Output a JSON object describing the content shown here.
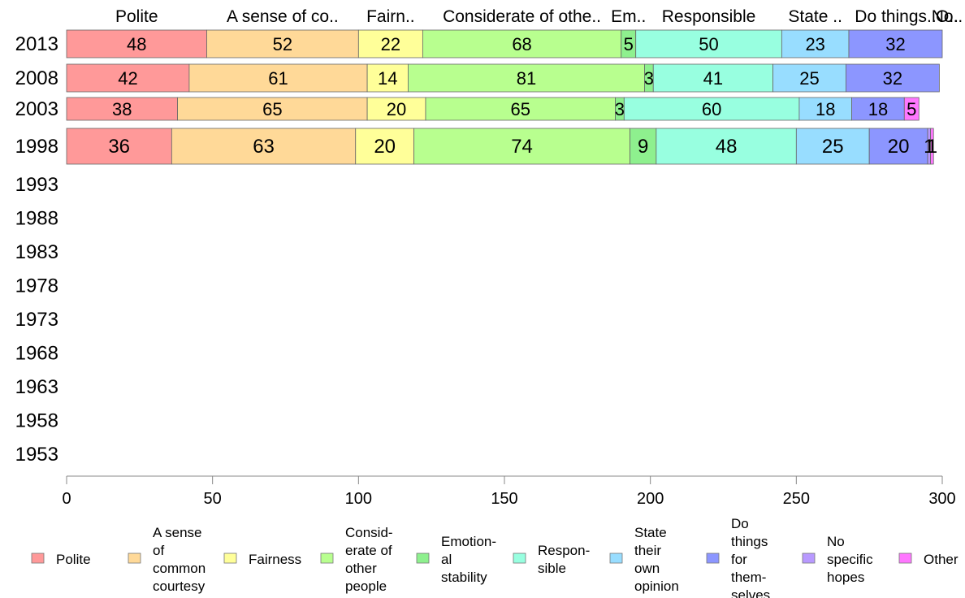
{
  "chart_data": {
    "type": "bar",
    "orientation": "horizontal",
    "stacked": true,
    "categories": [
      "2013",
      "2008",
      "2003",
      "1998",
      "1993",
      "1988",
      "1983",
      "1978",
      "1973",
      "1968",
      "1963",
      "1958",
      "1953"
    ],
    "series": [
      {
        "name": "Polite",
        "header": "Polite",
        "legend": [
          "Polite"
        ],
        "color": "#ff9999",
        "values": [
          48,
          42,
          38,
          36,
          null,
          null,
          null,
          null,
          null,
          null,
          null,
          null,
          null
        ]
      },
      {
        "name": "A sense of common courtesy",
        "header": "A sense of co..",
        "legend": [
          "A sense",
          "of",
          "common",
          "courtesy"
        ],
        "color": "#ffd998",
        "values": [
          52,
          61,
          65,
          63,
          null,
          null,
          null,
          null,
          null,
          null,
          null,
          null,
          null
        ]
      },
      {
        "name": "Fairness",
        "header": "Fairn..",
        "legend": [
          "Fairness"
        ],
        "color": "#ffff99",
        "values": [
          22,
          14,
          20,
          20,
          null,
          null,
          null,
          null,
          null,
          null,
          null,
          null,
          null
        ]
      },
      {
        "name": "Considerate of other people",
        "header": "Considerate of othe..",
        "legend": [
          "Consid-",
          "erate of",
          "other",
          "people"
        ],
        "color": "#b8ff8f",
        "values": [
          68,
          81,
          65,
          74,
          null,
          null,
          null,
          null,
          null,
          null,
          null,
          null,
          null
        ]
      },
      {
        "name": "Emotional stability",
        "header": "Em..",
        "legend": [
          "Emotion-",
          "al",
          "stability"
        ],
        "color": "#8ef08e",
        "values": [
          5,
          3,
          3,
          9,
          null,
          null,
          null,
          null,
          null,
          null,
          null,
          null,
          null
        ]
      },
      {
        "name": "Responsible",
        "header": "Responsible",
        "legend": [
          "Respon-",
          "sible"
        ],
        "color": "#98ffe0",
        "values": [
          50,
          41,
          60,
          48,
          null,
          null,
          null,
          null,
          null,
          null,
          null,
          null,
          null
        ]
      },
      {
        "name": "State their own opinion",
        "header": "State ..",
        "legend": [
          "State",
          "their",
          "own",
          "opinion"
        ],
        "color": "#98ddff",
        "values": [
          23,
          25,
          18,
          25,
          null,
          null,
          null,
          null,
          null,
          null,
          null,
          null,
          null
        ]
      },
      {
        "name": "Do things for themselves",
        "header": "Do things..",
        "legend": [
          "Do",
          "things",
          "for",
          "them-",
          "selves"
        ],
        "color": "#8c96ff",
        "values": [
          32,
          32,
          18,
          20,
          null,
          null,
          null,
          null,
          null,
          null,
          null,
          null,
          null
        ]
      },
      {
        "name": "No specific hopes",
        "header": "No..",
        "legend": [
          "No",
          "specific",
          "hopes"
        ],
        "color": "#b899ff",
        "values": [
          0,
          0,
          0,
          1,
          null,
          null,
          null,
          null,
          null,
          null,
          null,
          null,
          null
        ]
      },
      {
        "name": "Other",
        "header": "O..",
        "legend": [
          "Other"
        ],
        "color": "#ff77ff",
        "values": [
          0,
          0,
          5,
          1,
          null,
          null,
          null,
          null,
          null,
          null,
          null,
          null,
          null
        ]
      }
    ],
    "xlim": [
      0,
      300
    ],
    "xticks": [
      0,
      50,
      100,
      150,
      200,
      250,
      300
    ],
    "grid": false,
    "legend_position": "bottom",
    "header_position": "top"
  }
}
